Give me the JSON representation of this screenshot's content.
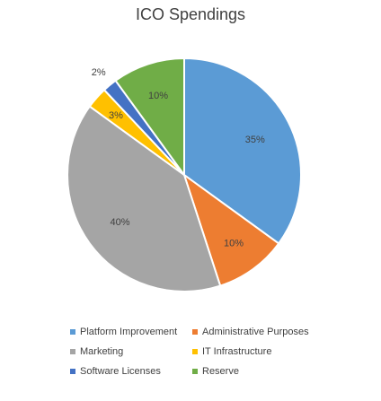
{
  "chart_data": {
    "type": "pie",
    "title": "ICO Spendings",
    "categories": [
      "Platform Improvement",
      "Administrative Purposes",
      "Marketing",
      "IT Infrastructure",
      "Software Licenses",
      "Reserve"
    ],
    "values": [
      35,
      10,
      40,
      3,
      2,
      10
    ],
    "labels": [
      "35%",
      "10%",
      "40%",
      "3%",
      "2%",
      "10%"
    ],
    "colors": [
      "#5b9bd5",
      "#ed7d31",
      "#a5a5a5",
      "#ffc000",
      "#4472c4",
      "#70ad47"
    ],
    "legend_position": "bottom"
  }
}
